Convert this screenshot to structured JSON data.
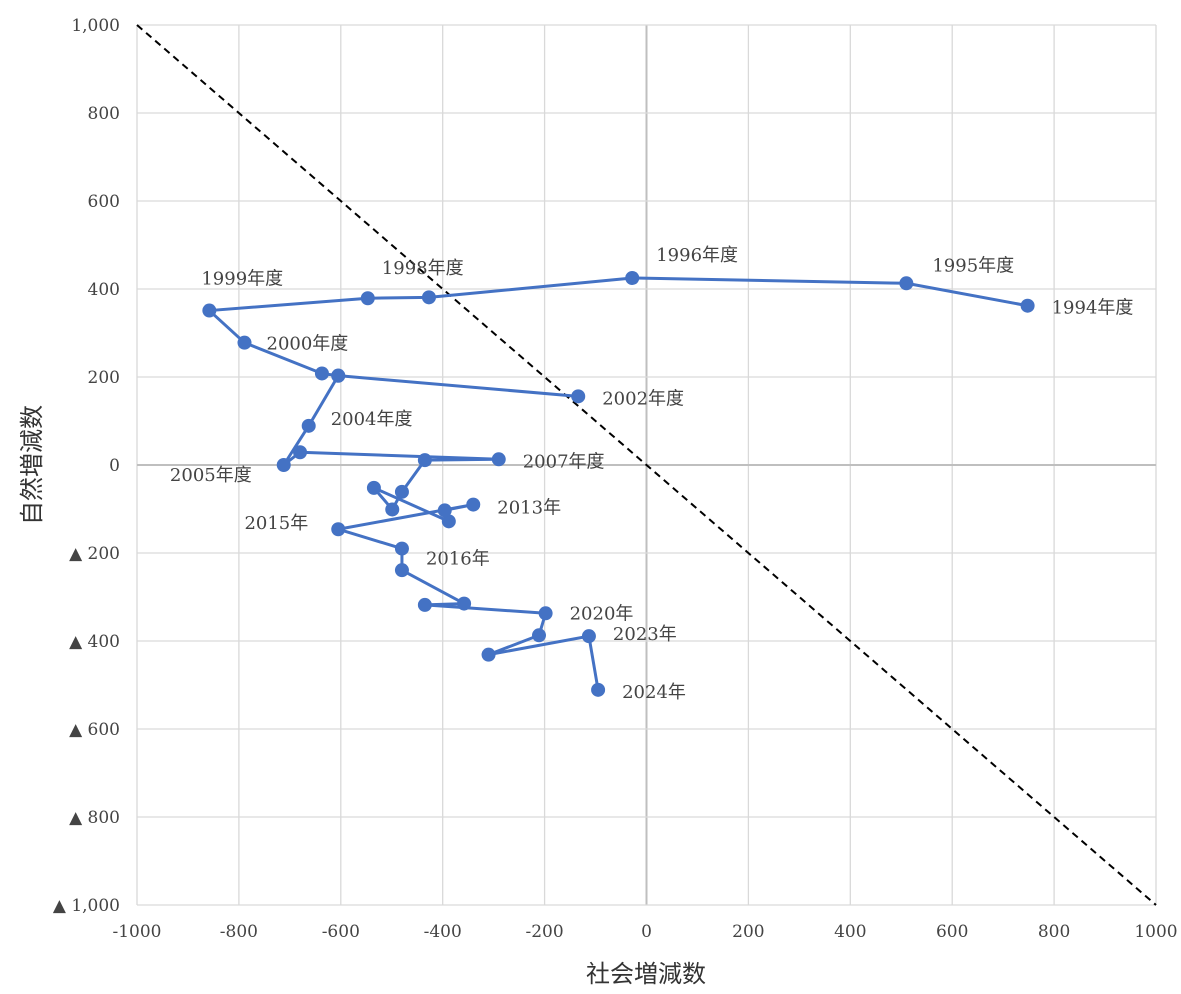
{
  "chart_data": {
    "type": "scatter",
    "xlabel": "社会増減数",
    "ylabel": "自然増減数",
    "xlim": [
      -1000,
      1000
    ],
    "ylim": [
      -1000,
      1000
    ],
    "grid": true,
    "x_ticks": [
      -1000,
      -800,
      -600,
      -400,
      -200,
      0,
      200,
      400,
      600,
      800,
      1000
    ],
    "x_tick_labels": [
      "-1000",
      "-800",
      "-600",
      "-400",
      "-200",
      "0",
      "200",
      "400",
      "600",
      "800",
      "1000"
    ],
    "y_ticks": [
      1000,
      800,
      600,
      400,
      200,
      0,
      -200,
      -400,
      -600,
      -800,
      -1000
    ],
    "y_tick_labels": [
      "1,000",
      "800",
      "600",
      "400",
      "200",
      "0",
      "▲ 200",
      "▲ 400",
      "▲ 600",
      "▲ 800",
      "▲ 1,000"
    ],
    "series": [
      {
        "color": "#4472C4",
        "points": [
          {
            "x": 748,
            "y": 362,
            "label": "1994年度"
          },
          {
            "x": 510,
            "y": 413,
            "label": "1995年度"
          },
          {
            "x": -28,
            "y": 425,
            "label": "1996年度"
          },
          {
            "x": -427,
            "y": 381,
            "label": ""
          },
          {
            "x": -547,
            "y": 379,
            "label": "1998年度"
          },
          {
            "x": -858,
            "y": 351,
            "label": "1999年度"
          },
          {
            "x": -789,
            "y": 278,
            "label": "2000年度"
          },
          {
            "x": -637,
            "y": 208,
            "label": ""
          },
          {
            "x": -605,
            "y": 203,
            "label": ""
          },
          {
            "x": -134,
            "y": 156,
            "label": "2002年度"
          },
          {
            "x": -605,
            "y": 203,
            "label": ""
          },
          {
            "x": -663,
            "y": 89,
            "label": "2004年度"
          },
          {
            "x": -712,
            "y": 0,
            "label": "2005年度"
          },
          {
            "x": -680,
            "y": 29,
            "label": ""
          },
          {
            "x": -290,
            "y": 13,
            "label": "2007年度"
          },
          {
            "x": -435,
            "y": 11,
            "label": ""
          },
          {
            "x": -480,
            "y": -61,
            "label": ""
          },
          {
            "x": -499,
            "y": -101,
            "label": ""
          },
          {
            "x": -535,
            "y": -52,
            "label": ""
          },
          {
            "x": -388,
            "y": -128,
            "label": ""
          },
          {
            "x": -396,
            "y": -103,
            "label": ""
          },
          {
            "x": -340,
            "y": -90,
            "label": "2013年"
          },
          {
            "x": -605,
            "y": -146,
            "label": "2015年"
          },
          {
            "x": -480,
            "y": -190,
            "label": "2016年"
          },
          {
            "x": -480,
            "y": -239,
            "label": ""
          },
          {
            "x": -358,
            "y": -315,
            "label": ""
          },
          {
            "x": -435,
            "y": -318,
            "label": ""
          },
          {
            "x": -198,
            "y": -337,
            "label": "2020年"
          },
          {
            "x": -211,
            "y": -387,
            "label": ""
          },
          {
            "x": -310,
            "y": -431,
            "label": ""
          },
          {
            "x": -113,
            "y": -389,
            "label": "2023年"
          },
          {
            "x": -95,
            "y": -511,
            "label": "2024年"
          }
        ]
      }
    ],
    "reference_line": {
      "from": [
        -1000,
        1000
      ],
      "to": [
        1000,
        -1000
      ],
      "style": "dashed",
      "color": "#000000"
    }
  }
}
